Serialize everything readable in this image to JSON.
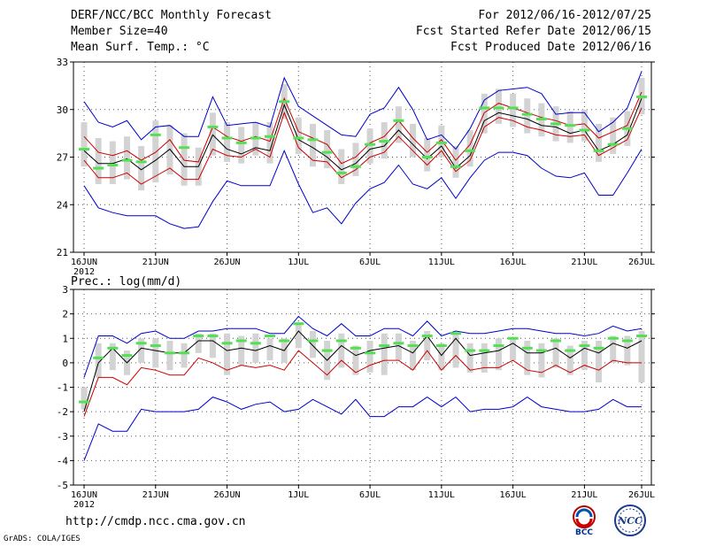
{
  "header": {
    "title": "DERF/NCC/BCC Monthly Forecast",
    "member_size": "Member Size=40",
    "variable": "Mean Surf. Temp.: °C",
    "period": "For 2012/06/16-2012/07/25",
    "started": "Fcst Started Refer Date 2012/06/15",
    "produced": "Fcst Produced Date 2012/06/16"
  },
  "footer": {
    "url": "http://cmdp.ncc.cma.gov.cn",
    "grads": "GrADS: COLA/IGES",
    "logo_bcc": "BCC",
    "logo_ncc": "NCC"
  },
  "colors": {
    "box": "#d3d3d3",
    "median": "#54e054",
    "mean": "#000000",
    "inner": "#cc0000",
    "outer": "#0000cc",
    "grid": "#555555"
  },
  "chart_data": [
    {
      "type": "line",
      "title": "Mean Surf. Temp.: °C",
      "ylim": [
        21,
        33
      ],
      "yticks": [
        21,
        24,
        27,
        30,
        33
      ],
      "xlim": [
        1,
        40
      ],
      "xtick_days": [
        1,
        6,
        11,
        16,
        21,
        26,
        31,
        36,
        40
      ],
      "xtick_labels": [
        "16JUN",
        "21JUN",
        "26JUN",
        "1JUL",
        "6JUL",
        "11JUL",
        "16JUL",
        "21JUL",
        "26JUL"
      ],
      "year_label": "2012",
      "series": [
        {
          "name": "max",
          "values": [
            30.5,
            29.2,
            28.9,
            29.3,
            28.1,
            28.9,
            29.0,
            28.3,
            28.3,
            30.8,
            29.0,
            29.1,
            29.2,
            28.9,
            32.0,
            30.2,
            29.6,
            29.0,
            28.4,
            28.3,
            29.7,
            30.1,
            31.4,
            30.0,
            28.1,
            28.4,
            27.5,
            28.8,
            30.6,
            31.2,
            31.3,
            31.4,
            31.0,
            29.7,
            29.8,
            29.8,
            28.6,
            29.2,
            30.1,
            32.4
          ]
        },
        {
          "name": "p75",
          "values": [
            28.3,
            27.3,
            27.1,
            27.4,
            26.8,
            27.3,
            28.1,
            26.8,
            26.7,
            28.9,
            28.3,
            28.0,
            28.3,
            28.0,
            30.7,
            28.6,
            28.2,
            27.8,
            26.6,
            27.0,
            27.9,
            28.3,
            29.3,
            28.2,
            27.3,
            28.1,
            26.8,
            27.8,
            29.8,
            30.4,
            30.1,
            29.8,
            29.5,
            29.3,
            29.0,
            29.1,
            28.2,
            28.6,
            29.0,
            31.1
          ]
        },
        {
          "name": "mean",
          "values": [
            27.4,
            26.6,
            26.6,
            26.9,
            26.2,
            26.8,
            27.5,
            26.4,
            26.4,
            28.4,
            27.5,
            27.2,
            27.6,
            27.4,
            30.3,
            28.1,
            27.6,
            27.0,
            26.2,
            26.6,
            27.5,
            27.7,
            28.7,
            27.8,
            26.9,
            27.7,
            26.3,
            27.1,
            29.3,
            29.8,
            29.6,
            29.4,
            29.0,
            28.9,
            28.5,
            28.7,
            27.4,
            27.8,
            28.4,
            30.7
          ]
        },
        {
          "name": "p25",
          "values": [
            26.8,
            25.7,
            25.7,
            26.0,
            25.3,
            25.8,
            26.3,
            25.6,
            25.6,
            27.5,
            27.1,
            27.0,
            27.5,
            27.0,
            29.8,
            27.6,
            26.8,
            26.7,
            25.7,
            26.2,
            27.0,
            27.3,
            28.3,
            27.4,
            26.5,
            27.4,
            26.1,
            26.8,
            28.9,
            29.5,
            29.3,
            28.9,
            28.7,
            28.4,
            28.3,
            28.4,
            27.1,
            27.6,
            28.1,
            30.1
          ]
        },
        {
          "name": "min",
          "values": [
            25.2,
            23.8,
            23.5,
            23.3,
            23.3,
            23.3,
            22.8,
            22.5,
            22.6,
            24.2,
            25.5,
            25.2,
            25.2,
            25.2,
            27.4,
            25.3,
            23.5,
            23.8,
            22.8,
            24.1,
            25.0,
            25.4,
            26.5,
            25.3,
            25.0,
            25.7,
            24.4,
            25.7,
            26.8,
            27.3,
            27.3,
            27.1,
            26.3,
            25.8,
            25.7,
            26.0,
            24.6,
            24.6,
            26.0,
            27.5
          ]
        },
        {
          "name": "median",
          "values": [
            27.5,
            26.3,
            26.5,
            26.8,
            26.7,
            28.4,
            null,
            27.6,
            null,
            28.9,
            28.2,
            27.9,
            28.2,
            28.3,
            30.5,
            28.2,
            28.1,
            27.3,
            26.0,
            26.4,
            27.8,
            28.0,
            29.3,
            null,
            27.0,
            27.9,
            26.4,
            27.4,
            30.1,
            30.1,
            30.1,
            29.7,
            29.4,
            29.1,
            29.0,
            28.7,
            27.4,
            27.8,
            28.8,
            30.8
          ]
        }
      ]
    },
    {
      "type": "line",
      "title": "Prec.: log(mm/d)",
      "ylim": [
        -5,
        3
      ],
      "yticks": [
        -5,
        -4,
        -3,
        -2,
        -1,
        0,
        1,
        2,
        3
      ],
      "xlim": [
        1,
        40
      ],
      "xtick_days": [
        1,
        6,
        11,
        16,
        21,
        26,
        31,
        36,
        40
      ],
      "xtick_labels": [
        "16JUN",
        "21JUN",
        "26JUN",
        "1JUL",
        "6JUL",
        "11JUL",
        "16JUL",
        "21JUL",
        "26JUL"
      ],
      "year_label": "2012",
      "series": [
        {
          "name": "max",
          "values": [
            -0.6,
            1.1,
            1.1,
            0.8,
            1.2,
            1.3,
            1.0,
            1.0,
            1.3,
            1.3,
            1.4,
            1.4,
            1.4,
            1.2,
            1.2,
            1.9,
            1.4,
            1.1,
            1.6,
            1.1,
            1.1,
            1.4,
            1.4,
            1.1,
            1.7,
            1.1,
            1.3,
            1.2,
            1.2,
            1.3,
            1.4,
            1.4,
            1.3,
            1.2,
            1.2,
            1.1,
            1.2,
            1.5,
            1.3,
            1.4
          ]
        },
        {
          "name": "mean",
          "values": [
            -2.0,
            0.0,
            0.6,
            0.0,
            0.6,
            0.5,
            0.4,
            0.4,
            0.9,
            0.9,
            0.5,
            0.6,
            0.5,
            0.7,
            0.5,
            1.3,
            0.7,
            0.1,
            0.7,
            0.3,
            0.5,
            0.6,
            0.7,
            0.4,
            1.1,
            0.3,
            1.0,
            0.3,
            0.4,
            0.5,
            0.8,
            0.4,
            0.4,
            0.6,
            0.2,
            0.6,
            0.4,
            0.8,
            0.6,
            0.9
          ]
        },
        {
          "name": "min_inner",
          "values": [
            -2.2,
            -0.6,
            -0.6,
            -0.9,
            -0.2,
            -0.3,
            -0.5,
            -0.5,
            0.2,
            0.0,
            -0.3,
            -0.1,
            -0.2,
            -0.1,
            -0.3,
            0.5,
            0.0,
            -0.5,
            0.1,
            -0.4,
            -0.1,
            0.1,
            0.1,
            -0.3,
            0.5,
            -0.3,
            0.3,
            -0.3,
            -0.2,
            -0.2,
            0.1,
            -0.3,
            -0.4,
            -0.1,
            -0.4,
            -0.1,
            -0.3,
            0.1,
            0.0,
            0.0
          ]
        },
        {
          "name": "min",
          "values": [
            -4.0,
            -2.5,
            -2.8,
            -2.8,
            -1.9,
            -2.0,
            -2.0,
            -2.0,
            -1.9,
            -1.4,
            -1.6,
            -1.9,
            -1.7,
            -1.6,
            -2.0,
            -1.9,
            -1.5,
            -1.8,
            -2.1,
            -1.5,
            -2.2,
            -2.2,
            -1.8,
            -1.8,
            -1.4,
            -1.8,
            -1.4,
            -2.0,
            -1.9,
            -1.9,
            -1.8,
            -1.4,
            -1.8,
            -1.9,
            -2.0,
            -2.0,
            -1.9,
            -1.5,
            -1.8,
            -1.8
          ]
        },
        {
          "name": "box_top",
          "values": [
            -1.0,
            0.8,
            0.8,
            0.5,
            1.0,
            1.0,
            0.9,
            0.8,
            1.2,
            1.2,
            1.2,
            1.1,
            1.2,
            1.0,
            1.0,
            1.6,
            1.3,
            0.9,
            1.2,
            0.7,
            0.9,
            1.2,
            1.2,
            0.9,
            1.3,
            0.8,
            1.2,
            0.8,
            0.8,
            1.0,
            1.0,
            0.9,
            0.8,
            1.0,
            0.7,
            0.9,
            0.9,
            1.1,
            1.1,
            1.3
          ]
        },
        {
          "name": "box_bottom",
          "values": [
            -1.9,
            -0.6,
            -0.3,
            -0.5,
            0.0,
            -0.2,
            -0.3,
            -0.2,
            0.4,
            0.2,
            -0.5,
            -0.1,
            0.0,
            0.1,
            0.0,
            0.6,
            0.2,
            -0.7,
            -0.2,
            -0.5,
            -0.4,
            -0.5,
            0.1,
            -0.3,
            0.1,
            -0.3,
            -0.2,
            -0.4,
            -0.4,
            -0.3,
            0.1,
            -0.5,
            -0.6,
            -0.2,
            -0.5,
            -0.3,
            -0.8,
            0.0,
            -0.1,
            -0.8
          ]
        },
        {
          "name": "median",
          "values": [
            -1.6,
            0.2,
            0.6,
            0.3,
            0.8,
            0.7,
            0.4,
            0.4,
            1.1,
            1.1,
            0.8,
            0.9,
            0.8,
            1.1,
            0.9,
            1.6,
            0.9,
            0.5,
            0.9,
            0.6,
            0.4,
            0.7,
            0.8,
            0.7,
            1.1,
            0.7,
            1.2,
            0.5,
            0.5,
            0.7,
            1.0,
            0.6,
            0.5,
            0.9,
            0.5,
            0.7,
            0.6,
            1.0,
            0.9,
            1.1
          ]
        }
      ]
    }
  ],
  "panel2_label": "Prec.: log(mm/d)"
}
